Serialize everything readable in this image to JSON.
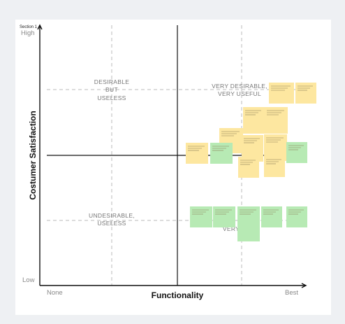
{
  "section": "Section 1",
  "y_axis": {
    "title": "Costumer Satisfaction",
    "high": "High",
    "low": "Low"
  },
  "x_axis": {
    "title": "Functionality",
    "low": "None",
    "high": "Best"
  },
  "quadrants": [
    {
      "lines": [
        "DESIRABLE",
        "BUT",
        "USELESS"
      ]
    },
    {
      "lines": [
        "VERY DESIRABLE,",
        "VERY USEFUL"
      ]
    },
    {
      "lines": [
        "UNDESIRABLE,",
        "USELESS"
      ]
    },
    {
      "lines": [
        "VERY"
      ]
    }
  ]
}
